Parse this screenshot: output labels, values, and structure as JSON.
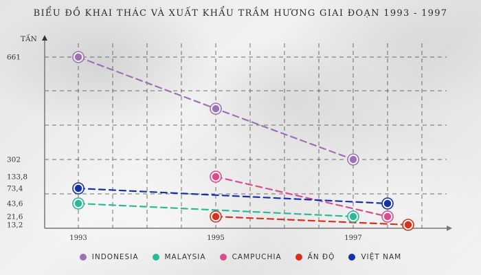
{
  "chart_data": {
    "type": "line",
    "title": "BIỂU ĐỒ KHAI THÁC VÀ XUẤT KHẨU TRẦM HƯƠNG GIAI ĐOẠN 1993 - 1997",
    "ylabel": "TẤN",
    "xlabel": "",
    "y_tick_labels": [
      "661",
      "302",
      "133,8",
      "73,4",
      "43,6",
      "21,6",
      "13,2"
    ],
    "x_tick_labels": [
      "1993",
      "1995",
      "1997"
    ],
    "grid": true,
    "legend_position": "bottom",
    "series": [
      {
        "name": "INDONESIA",
        "color": "#9b72b5",
        "points": [
          {
            "x": 1993,
            "y": 661
          },
          {
            "x": 1995,
            "y": 480
          },
          {
            "x": 1997,
            "y": 302
          }
        ]
      },
      {
        "name": "MALAYSIA",
        "color": "#2bb99a",
        "points": [
          {
            "x": 1993,
            "y": 43.6
          },
          {
            "x": 1997,
            "y": 21.6
          }
        ]
      },
      {
        "name": "CAMPUCHIA",
        "color": "#dd4b8f",
        "points": [
          {
            "x": 1995,
            "y": 133.8
          },
          {
            "x": 1997.5,
            "y": 21.6
          }
        ]
      },
      {
        "name": "ẤN ĐỘ",
        "color": "#d9301d",
        "points": [
          {
            "x": 1995,
            "y": 21.6
          },
          {
            "x": 1997.8,
            "y": 13.2
          }
        ]
      },
      {
        "name": "VIỆT NAM",
        "color": "#1530a8",
        "points": [
          {
            "x": 1993,
            "y": 73.4
          },
          {
            "x": 1997.5,
            "y": 43.6
          }
        ]
      }
    ]
  }
}
